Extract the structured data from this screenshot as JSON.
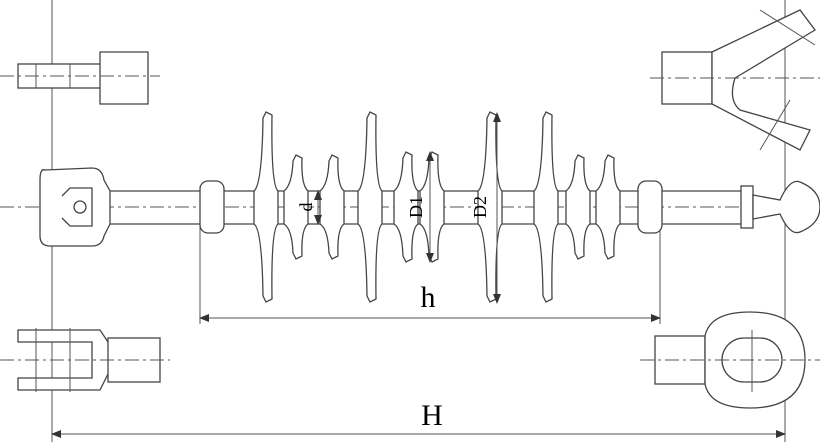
{
  "labels": {
    "d": "d",
    "D1": "D1",
    "D2": "D2",
    "h": "h",
    "H": "H"
  }
}
